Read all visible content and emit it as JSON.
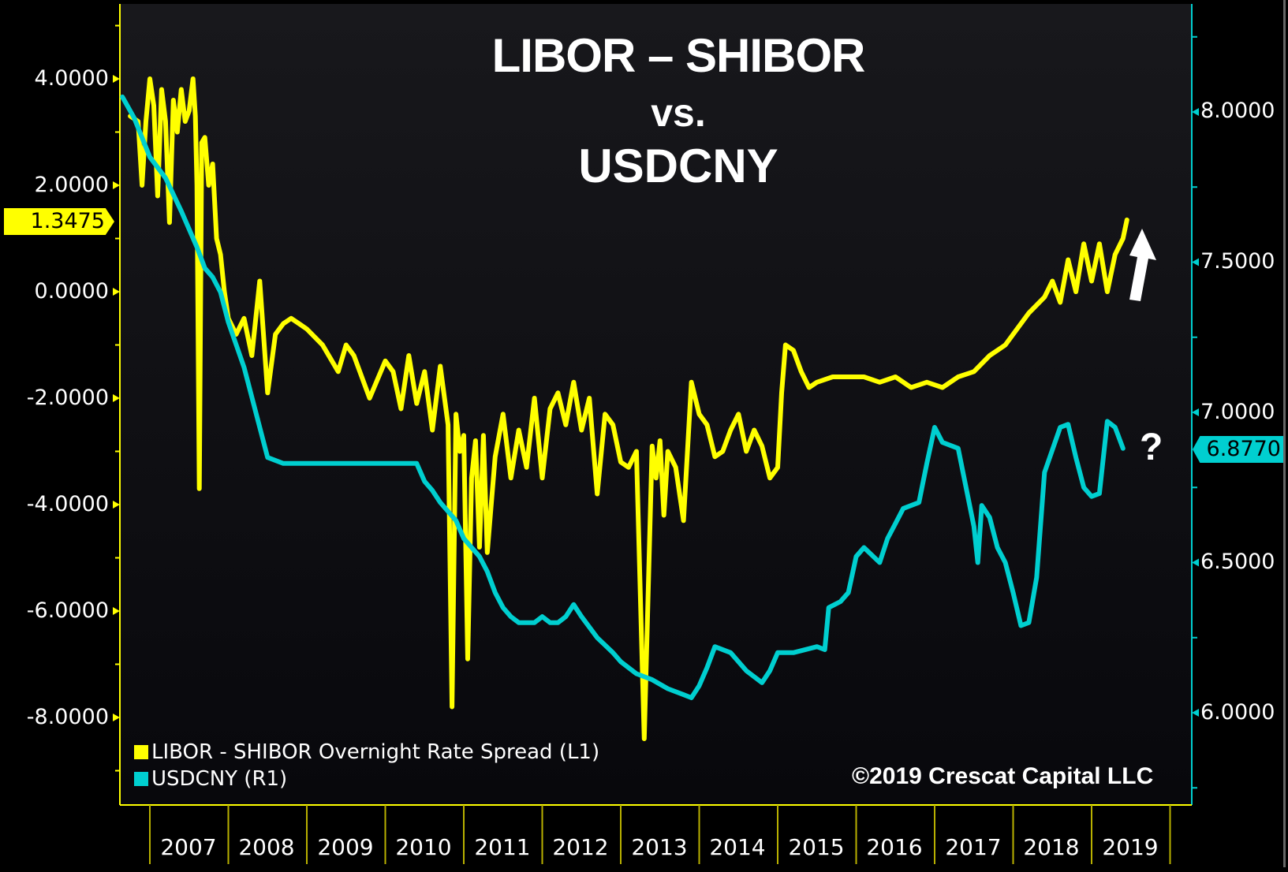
{
  "title": {
    "line1": "LIBOR – SHIBOR",
    "line2": "vs.",
    "line3": "USDCNY"
  },
  "copyright": "©2019 Crescat Capital LLC",
  "annotations": {
    "arrow": "up-arrow",
    "question": "?"
  },
  "left_axis": {
    "ticks": [
      "4.0000",
      "2.0000",
      "0.0000",
      "-2.0000",
      "-4.0000",
      "-6.0000",
      "-8.0000"
    ],
    "current_value": "1.3475",
    "color": "#ffff00"
  },
  "right_axis": {
    "ticks": [
      "8.0000",
      "7.5000",
      "7.0000",
      "6.5000",
      "6.0000"
    ],
    "current_value": "6.8770",
    "color": "#00cfd0"
  },
  "x_axis": {
    "years": [
      "2007",
      "2008",
      "2009",
      "2010",
      "2011",
      "2012",
      "2013",
      "2014",
      "2015",
      "2016",
      "2017",
      "2018",
      "2019"
    ]
  },
  "legend": [
    {
      "label": "LIBOR - SHIBOR Overnight Rate Spread (L1)",
      "color": "#ffff00"
    },
    {
      "label": "USDCNY (R1)",
      "color": "#00cfd0"
    }
  ],
  "chart_data": {
    "type": "line",
    "title": "LIBOR – SHIBOR vs. USDCNY",
    "xlabel": "",
    "x_range": [
      2006.6,
      2019.85
    ],
    "grid": false,
    "legend_position": "bottom-left",
    "series": [
      {
        "name": "LIBOR - SHIBOR Overnight Rate Spread (L1)",
        "axis": "left",
        "ylim": [
          -9.3,
          5.4
        ],
        "color": "#ffff00",
        "x": [
          2006.75,
          2006.85,
          2006.9,
          2006.95,
          2007.0,
          2007.05,
          2007.1,
          2007.15,
          2007.2,
          2007.25,
          2007.3,
          2007.35,
          2007.4,
          2007.45,
          2007.5,
          2007.55,
          2007.58,
          2007.6,
          2007.63,
          2007.66,
          2007.7,
          2007.75,
          2007.8,
          2007.85,
          2007.9,
          2007.95,
          2008.0,
          2008.1,
          2008.2,
          2008.3,
          2008.4,
          2008.5,
          2008.6,
          2008.7,
          2008.8,
          2008.9,
          2009.0,
          2009.2,
          2009.4,
          2009.5,
          2009.6,
          2009.8,
          2010.0,
          2010.1,
          2010.2,
          2010.3,
          2010.4,
          2010.5,
          2010.6,
          2010.7,
          2010.8,
          2010.85,
          2010.9,
          2010.95,
          2011.0,
          2011.05,
          2011.1,
          2011.15,
          2011.2,
          2011.25,
          2011.3,
          2011.4,
          2011.5,
          2011.6,
          2011.7,
          2011.8,
          2011.9,
          2012.0,
          2012.1,
          2012.2,
          2012.3,
          2012.4,
          2012.5,
          2012.6,
          2012.7,
          2012.8,
          2012.9,
          2013.0,
          2013.1,
          2013.2,
          2013.3,
          2013.4,
          2013.45,
          2013.5,
          2013.55,
          2013.6,
          2013.7,
          2013.8,
          2013.9,
          2014.0,
          2014.1,
          2014.2,
          2014.3,
          2014.4,
          2014.5,
          2014.6,
          2014.7,
          2014.8,
          2014.9,
          2015.0,
          2015.05,
          2015.1,
          2015.2,
          2015.3,
          2015.4,
          2015.5,
          2015.7,
          2015.9,
          2016.1,
          2016.3,
          2016.5,
          2016.7,
          2016.9,
          2017.1,
          2017.3,
          2017.5,
          2017.7,
          2017.9,
          2018.0,
          2018.2,
          2018.4,
          2018.5,
          2018.6,
          2018.7,
          2018.8,
          2018.9,
          2019.0,
          2019.1,
          2019.2,
          2019.3,
          2019.4,
          2019.45
        ],
        "y": [
          3.3,
          3.2,
          2.0,
          3.2,
          4.0,
          3.5,
          1.8,
          3.8,
          3.2,
          1.3,
          3.6,
          3.0,
          3.8,
          3.2,
          3.4,
          4.0,
          3.3,
          2.0,
          -3.7,
          2.8,
          2.9,
          2.0,
          2.4,
          1.0,
          0.7,
          0.0,
          -0.5,
          -0.8,
          -0.5,
          -1.2,
          0.2,
          -1.9,
          -0.8,
          -0.6,
          -0.5,
          -0.6,
          -0.7,
          -1.0,
          -1.5,
          -1.0,
          -1.2,
          -2.0,
          -1.3,
          -1.5,
          -2.2,
          -1.2,
          -2.1,
          -1.5,
          -2.6,
          -1.4,
          -2.5,
          -7.8,
          -2.3,
          -3.0,
          -2.7,
          -6.9,
          -3.5,
          -2.8,
          -4.8,
          -2.7,
          -4.9,
          -3.1,
          -2.3,
          -3.5,
          -2.6,
          -3.3,
          -2.0,
          -3.5,
          -2.2,
          -1.9,
          -2.5,
          -1.7,
          -2.6,
          -2.0,
          -3.8,
          -2.3,
          -2.5,
          -3.2,
          -3.3,
          -3.0,
          -8.4,
          -2.9,
          -3.5,
          -2.8,
          -4.2,
          -3.0,
          -3.3,
          -4.3,
          -1.7,
          -2.3,
          -2.5,
          -3.1,
          -3.0,
          -2.6,
          -2.3,
          -3.0,
          -2.6,
          -2.9,
          -3.5,
          -3.3,
          -1.9,
          -1.0,
          -1.1,
          -1.5,
          -1.8,
          -1.7,
          -1.6,
          -1.6,
          -1.6,
          -1.7,
          -1.6,
          -1.8,
          -1.7,
          -1.8,
          -1.6,
          -1.5,
          -1.2,
          -1.0,
          -0.8,
          -0.4,
          -0.1,
          0.2,
          -0.2,
          0.6,
          0.0,
          0.9,
          0.2,
          0.9,
          0.0,
          0.7,
          1.0,
          1.35
        ]
      },
      {
        "name": "USDCNY (R1)",
        "axis": "right",
        "ylim": [
          5.75,
          8.35
        ],
        "color": "#00cfd0",
        "x": [
          2006.65,
          2006.8,
          2007.0,
          2007.2,
          2007.4,
          2007.6,
          2007.7,
          2007.8,
          2007.9,
          2008.0,
          2008.2,
          2008.4,
          2008.5,
          2008.7,
          2008.9,
          2009.2,
          2009.5,
          2009.8,
          2010.0,
          2010.4,
          2010.45,
          2010.5,
          2010.6,
          2010.7,
          2010.8,
          2010.9,
          2011.0,
          2011.2,
          2011.3,
          2011.4,
          2011.5,
          2011.6,
          2011.7,
          2011.8,
          2011.9,
          2012.0,
          2012.1,
          2012.2,
          2012.3,
          2012.4,
          2012.5,
          2012.7,
          2012.9,
          2013.0,
          2013.2,
          2013.4,
          2013.6,
          2013.8,
          2013.9,
          2014.0,
          2014.1,
          2014.2,
          2014.4,
          2014.6,
          2014.8,
          2014.9,
          2015.0,
          2015.2,
          2015.5,
          2015.6,
          2015.65,
          2015.8,
          2015.9,
          2016.0,
          2016.1,
          2016.3,
          2016.4,
          2016.5,
          2016.6,
          2016.8,
          2016.9,
          2017.0,
          2017.1,
          2017.3,
          2017.5,
          2017.55,
          2017.6,
          2017.7,
          2017.8,
          2017.9,
          2018.0,
          2018.1,
          2018.2,
          2018.3,
          2018.4,
          2018.6,
          2018.7,
          2018.8,
          2018.9,
          2019.0,
          2019.1,
          2019.2,
          2019.3,
          2019.4
        ],
        "y": [
          8.05,
          7.98,
          7.85,
          7.78,
          7.67,
          7.55,
          7.48,
          7.45,
          7.4,
          7.3,
          7.15,
          6.95,
          6.85,
          6.83,
          6.83,
          6.83,
          6.83,
          6.83,
          6.83,
          6.83,
          6.8,
          6.77,
          6.74,
          6.7,
          6.67,
          6.64,
          6.58,
          6.52,
          6.47,
          6.4,
          6.35,
          6.32,
          6.3,
          6.3,
          6.3,
          6.32,
          6.3,
          6.3,
          6.32,
          6.36,
          6.32,
          6.25,
          6.2,
          6.17,
          6.13,
          6.11,
          6.08,
          6.06,
          6.05,
          6.09,
          6.15,
          6.22,
          6.2,
          6.14,
          6.1,
          6.14,
          6.2,
          6.2,
          6.22,
          6.21,
          6.35,
          6.37,
          6.4,
          6.52,
          6.55,
          6.5,
          6.58,
          6.63,
          6.68,
          6.7,
          6.83,
          6.95,
          6.9,
          6.88,
          6.62,
          6.5,
          6.69,
          6.65,
          6.55,
          6.5,
          6.4,
          6.29,
          6.3,
          6.45,
          6.8,
          6.95,
          6.96,
          6.85,
          6.75,
          6.72,
          6.73,
          6.97,
          6.95,
          6.88
        ]
      }
    ]
  }
}
